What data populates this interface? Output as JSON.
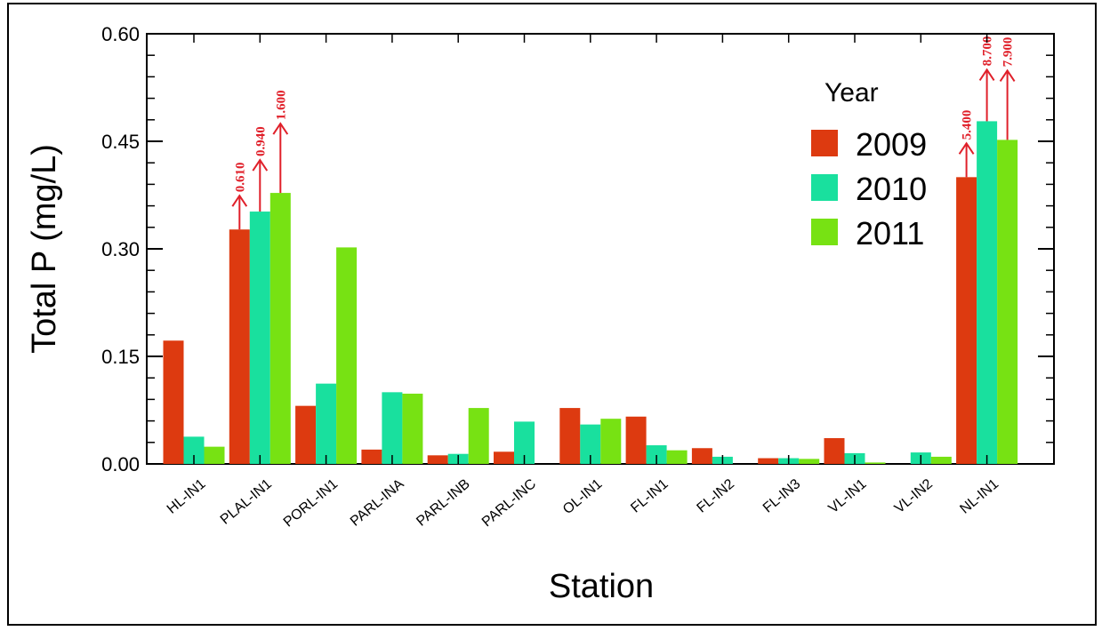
{
  "chart_data": {
    "type": "bar",
    "title": "",
    "xlabel": "Station",
    "ylabel": "Total P (mg/L)",
    "ylim": [
      0,
      0.6
    ],
    "yticks": [
      "0.00",
      "0.15",
      "0.30",
      "0.45",
      "0.60"
    ],
    "grid": false,
    "legend_title": "Year",
    "legend_position": "top-right",
    "categories": [
      "HL-IN1",
      "PLAL-IN1",
      "PORL-IN1",
      "PARL-INA",
      "PARL-INB",
      "PARL-INC",
      "OL-IN1",
      "FL-IN1",
      "FL-IN2",
      "FL-IN3",
      "VL-IN1",
      "VL-IN2",
      "NL-IN1"
    ],
    "series": [
      {
        "name": "2009",
        "color": "#dd3a10",
        "values": [
          0.172,
          0.327,
          0.081,
          0.02,
          0.012,
          0.017,
          0.078,
          0.066,
          0.022,
          0.008,
          0.036,
          null,
          0.4
        ]
      },
      {
        "name": "2010",
        "color": "#19e09e",
        "values": [
          0.038,
          0.352,
          0.112,
          0.1,
          0.014,
          0.059,
          0.055,
          0.026,
          0.01,
          0.008,
          0.015,
          0.016,
          0.478
        ]
      },
      {
        "name": "2011",
        "color": "#77e213",
        "values": [
          0.024,
          0.378,
          0.302,
          0.098,
          0.078,
          null,
          0.063,
          0.019,
          null,
          0.007,
          0.002,
          0.01,
          0.452
        ]
      }
    ],
    "annotations": [
      {
        "category": "PLAL-IN1",
        "series": "2009",
        "label": "0.610",
        "color": "#e0202a"
      },
      {
        "category": "PLAL-IN1",
        "series": "2010",
        "label": "0.940",
        "color": "#e0202a"
      },
      {
        "category": "PLAL-IN1",
        "series": "2011",
        "label": "1.600",
        "color": "#e0202a"
      },
      {
        "category": "NL-IN1",
        "series": "2009",
        "label": "5.400",
        "color": "#e0202a"
      },
      {
        "category": "NL-IN1",
        "series": "2010",
        "label": "8.700",
        "color": "#e0202a"
      },
      {
        "category": "NL-IN1",
        "series": "2011",
        "label": "7.900",
        "color": "#e0202a"
      }
    ]
  }
}
